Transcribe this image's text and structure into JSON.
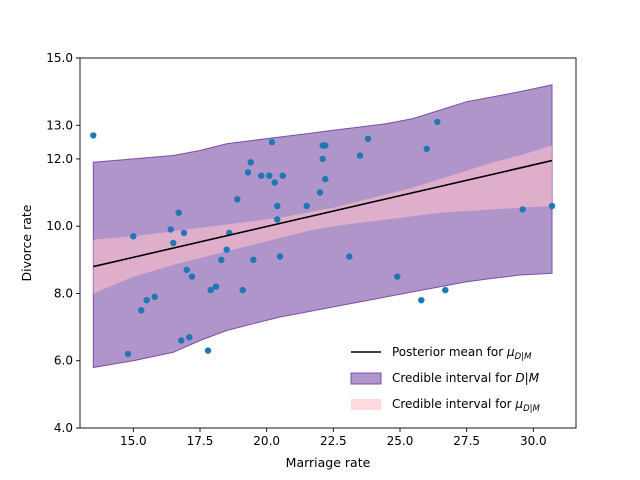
{
  "chart_data": {
    "type": "scatter",
    "title": "",
    "xlabel": "Marriage rate",
    "ylabel": "Divorce rate",
    "xlim": [
      13.0,
      31.6
    ],
    "ylim": [
      4.0,
      15.0
    ],
    "x_ticks": [
      15.0,
      17.5,
      20.0,
      22.5,
      25.0,
      27.5,
      30.0
    ],
    "x_tick_labels": [
      "15.0",
      "17.5",
      "20.0",
      "22.5",
      "25.0",
      "27.5",
      "30.0"
    ],
    "y_ticks": [
      4.0,
      6.0,
      8.0,
      10.0,
      12.0,
      13.0,
      15.0
    ],
    "y_tick_labels": [
      "4.0",
      "6.0",
      "8.0",
      "10.0",
      "12.0",
      "13.0",
      "15.0"
    ],
    "grid": false,
    "legend_position": "bottom-right",
    "colors": {
      "points": "#1f77b4",
      "mean_line": "#000000",
      "interval_D": "#7b4fa8",
      "interval_mu": "#ffc0cb"
    },
    "series": [
      {
        "name": "Observed data",
        "kind": "scatter",
        "x": [
          13.5,
          14.8,
          15.0,
          15.3,
          15.5,
          15.8,
          16.4,
          16.5,
          16.7,
          16.8,
          16.9,
          17.0,
          17.1,
          17.2,
          17.8,
          17.9,
          18.1,
          18.3,
          18.5,
          18.6,
          18.9,
          19.1,
          19.3,
          19.4,
          19.5,
          19.8,
          20.1,
          20.2,
          20.3,
          20.4,
          20.4,
          20.5,
          20.6,
          21.5,
          22.0,
          22.1,
          22.1,
          22.2,
          22.2,
          23.1,
          23.5,
          23.8,
          24.9,
          25.8,
          26.0,
          26.4,
          26.7,
          29.6,
          30.7
        ],
        "y": [
          12.7,
          6.2,
          9.7,
          7.5,
          7.8,
          7.9,
          9.9,
          9.5,
          10.4,
          6.6,
          9.8,
          8.7,
          6.7,
          8.5,
          6.3,
          8.1,
          8.2,
          9.0,
          9.3,
          9.8,
          10.8,
          8.1,
          11.6,
          11.9,
          9.0,
          11.5,
          11.5,
          12.5,
          11.3,
          10.6,
          10.2,
          9.1,
          11.5,
          10.6,
          11.0,
          12.0,
          12.4,
          11.4,
          12.4,
          9.1,
          12.1,
          12.6,
          8.5,
          7.8,
          12.3,
          13.1,
          8.1,
          10.5,
          10.6
        ]
      },
      {
        "name": "Posterior mean for $\\mu_{D|M}$",
        "kind": "line",
        "x": [
          13.5,
          30.7
        ],
        "y": [
          8.8,
          11.95
        ]
      },
      {
        "name": "Credible interval for $D|M$",
        "kind": "band",
        "x": [
          13.5,
          15.0,
          16.5,
          17.5,
          18.5,
          19.5,
          20.5,
          21.5,
          22.5,
          23.5,
          24.5,
          25.5,
          26.5,
          27.5,
          28.5,
          29.5,
          30.7
        ],
        "lower": [
          5.8,
          6.0,
          6.25,
          6.6,
          6.9,
          7.1,
          7.3,
          7.45,
          7.6,
          7.75,
          7.9,
          8.05,
          8.2,
          8.35,
          8.45,
          8.55,
          8.6
        ],
        "upper": [
          11.9,
          12.0,
          12.1,
          12.25,
          12.45,
          12.55,
          12.65,
          12.75,
          12.85,
          12.95,
          13.05,
          13.2,
          13.45,
          13.7,
          13.85,
          14.0,
          14.2
        ]
      },
      {
        "name": "Credible interval for $\\mu_{D|M}$",
        "kind": "band",
        "x": [
          13.5,
          15.0,
          16.5,
          17.5,
          18.5,
          19.5,
          20.5,
          21.5,
          22.5,
          23.5,
          24.5,
          25.5,
          26.5,
          27.5,
          28.5,
          29.5,
          30.7
        ],
        "lower": [
          8.0,
          8.5,
          8.85,
          9.05,
          9.25,
          9.45,
          9.65,
          9.85,
          10.0,
          10.1,
          10.2,
          10.3,
          10.4,
          10.45,
          10.5,
          10.55,
          10.6
        ],
        "upper": [
          9.6,
          9.7,
          9.85,
          9.95,
          10.05,
          10.15,
          10.25,
          10.4,
          10.55,
          10.75,
          10.95,
          11.15,
          11.4,
          11.65,
          11.9,
          12.1,
          12.4
        ]
      }
    ],
    "legend": [
      {
        "symbol": "line",
        "prefix": "Posterior mean for ",
        "math": "μ",
        "sub": "D|M",
        "italic": ""
      },
      {
        "symbol": "band-purple",
        "prefix": "Credible interval for ",
        "math": "",
        "sub": "",
        "italic": "D|M"
      },
      {
        "symbol": "band-pink",
        "prefix": "Credible interval for ",
        "math": "μ",
        "sub": "D|M",
        "italic": ""
      }
    ]
  }
}
